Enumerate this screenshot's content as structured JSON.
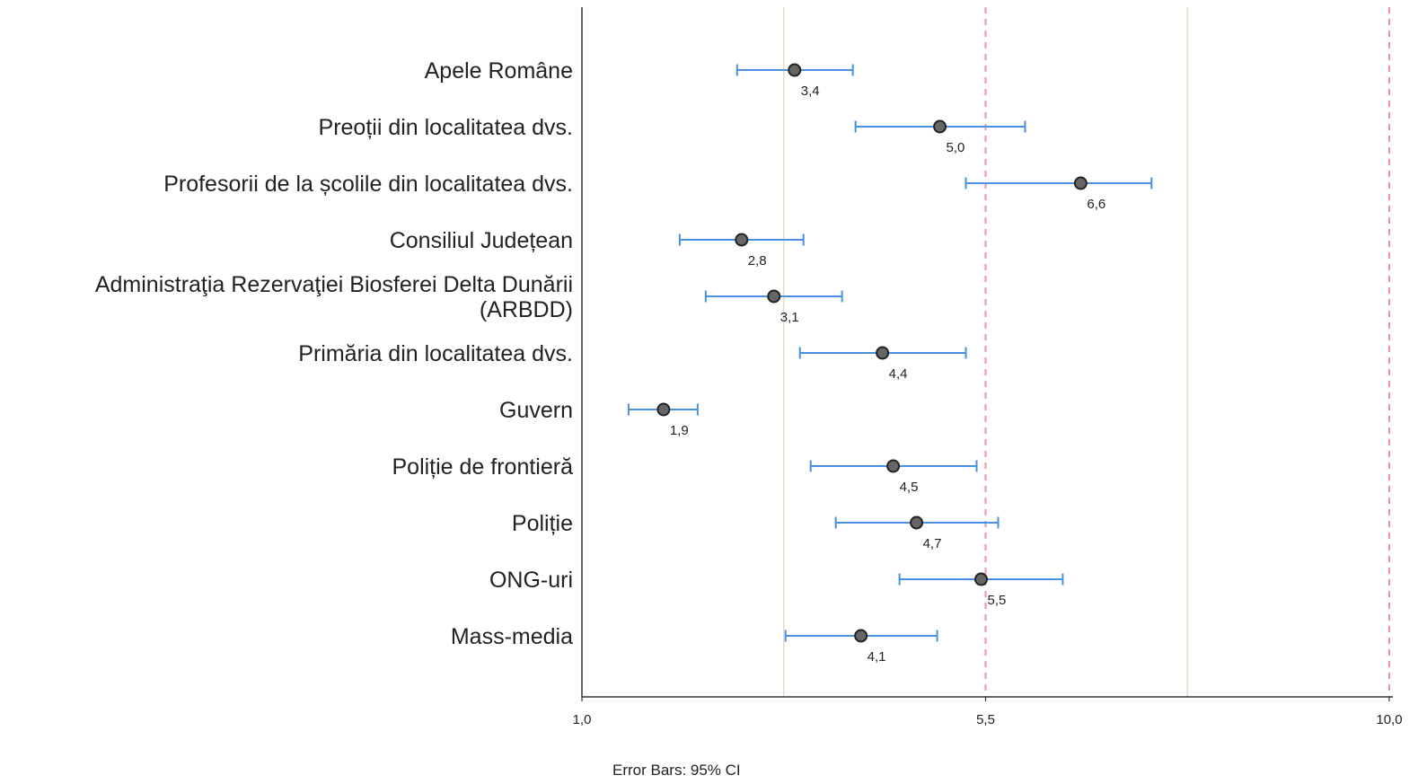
{
  "chart_data": {
    "type": "dot-errorbar",
    "orientation": "horizontal",
    "categories": [
      "Apele Române",
      "Preoții din localitatea dvs.",
      "Profesorii de la școlile din localitatea dvs.",
      "Consiliul Județean",
      "Administraţia Rezervaţiei Biosferei Delta Dunării (ARBDD)",
      "Primăria din localitatea dvs.",
      "Guvern",
      "Poliție de frontieră",
      "Poliție",
      "ONG-uri",
      "Mass-media"
    ],
    "category_lines": [
      [
        "Apele Române"
      ],
      [
        "Preoții din localitatea dvs."
      ],
      [
        "Profesorii de la școlile din localitatea dvs."
      ],
      [
        "Consiliul Județean"
      ],
      [
        "Administraţia Rezervaţiei Biosferei Delta Dunării",
        "(ARBDD)"
      ],
      [
        "Primăria din localitatea dvs."
      ],
      [
        "Guvern"
      ],
      [
        "Poliție de frontieră"
      ],
      [
        "Poliție"
      ],
      [
        "ONG-uri"
      ],
      [
        "Mass-media"
      ]
    ],
    "values": [
      3.37,
      4.99,
      6.56,
      2.78,
      3.14,
      4.35,
      1.91,
      4.47,
      4.73,
      5.45,
      4.11
    ],
    "ci_lower": [
      2.73,
      4.05,
      5.28,
      2.09,
      2.38,
      3.43,
      1.52,
      3.55,
      3.83,
      4.54,
      3.27
    ],
    "ci_upper": [
      4.02,
      5.94,
      7.35,
      3.47,
      3.9,
      5.28,
      2.29,
      5.4,
      5.64,
      6.36,
      4.96
    ],
    "data_labels": [
      "3,4",
      "5,0",
      "6,6",
      "2,8",
      "3,1",
      "4,4",
      "1,9",
      "4,5",
      "4,7",
      "5,5",
      "4,1"
    ],
    "xlim": [
      1.0,
      10.0
    ],
    "x_tick_values": [
      1.0,
      5.5,
      10.0
    ],
    "x_tick_labels": [
      "1,0",
      "5,5",
      "10,0"
    ],
    "reference_lines": [
      {
        "x": 3.25,
        "style": "solid"
      },
      {
        "x": 5.5,
        "style": "dashed"
      },
      {
        "x": 7.75,
        "style": "solid"
      },
      {
        "x": 10.0,
        "style": "dashed"
      }
    ],
    "footnote": "Error Bars: 95% CI",
    "colors": {
      "error_bar": "#4a90e2",
      "marker_fill": "#666666",
      "marker_stroke": "#222222",
      "ref_solid": "#ecd9c6",
      "ref_dashed": "#f48fa8",
      "axis": "#333333"
    }
  }
}
